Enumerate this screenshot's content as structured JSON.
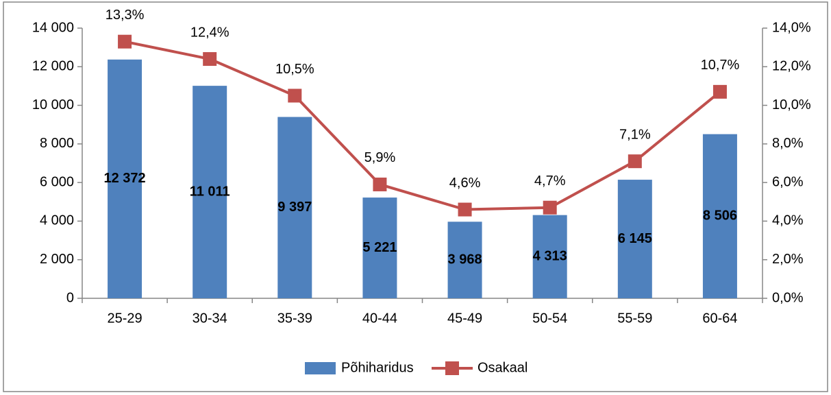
{
  "chart_data": {
    "type": "combo",
    "categories": [
      "25-29",
      "30-34",
      "35-39",
      "40-44",
      "45-49",
      "50-54",
      "55-59",
      "60-64"
    ],
    "series": [
      {
        "name": "Põhiharidus",
        "type": "bar",
        "color": "#4f81bd",
        "axis": "y",
        "values": [
          12372,
          11011,
          9397,
          5221,
          3968,
          4313,
          6145,
          8506
        ],
        "value_labels": [
          "12 372",
          "11 011",
          "9 397",
          "5 221",
          "3 968",
          "4 313",
          "6 145",
          "8 506"
        ]
      },
      {
        "name": "Osakaal",
        "type": "line",
        "color": "#c0504d",
        "axis": "y2",
        "values": [
          13.3,
          12.4,
          10.5,
          5.9,
          4.6,
          4.7,
          7.1,
          10.7
        ],
        "value_labels": [
          "13,3%",
          "12,4%",
          "10,5%",
          "5,9%",
          "4,6%",
          "4,7%",
          "7,1%",
          "10,7%"
        ]
      }
    ],
    "ylim": [
      0,
      14000
    ],
    "yticks": [
      0,
      {
        "value": 2000,
        "label": "2 000"
      },
      {
        "value": 4000,
        "label": "4 000"
      },
      {
        "value": 6000,
        "label": "6 000"
      },
      {
        "value": 8000,
        "label": "8 000"
      },
      {
        "value": 10000,
        "label": "10 000"
      },
      {
        "value": 12000,
        "label": "12 000"
      },
      {
        "value": 14000,
        "label": "14 000"
      }
    ],
    "y2lim": [
      0,
      14
    ],
    "y2ticks": [
      {
        "value": 0,
        "label": "0,0%"
      },
      {
        "value": 2,
        "label": "2,0%"
      },
      {
        "value": 4,
        "label": "4,0%"
      },
      {
        "value": 6,
        "label": "6,0%"
      },
      {
        "value": 8,
        "label": "8,0%"
      },
      {
        "value": 10,
        "label": "10,0%"
      },
      {
        "value": 12,
        "label": "12,0%"
      },
      {
        "value": 14,
        "label": "14,0%"
      }
    ],
    "legend": "bottom",
    "grid": false
  }
}
